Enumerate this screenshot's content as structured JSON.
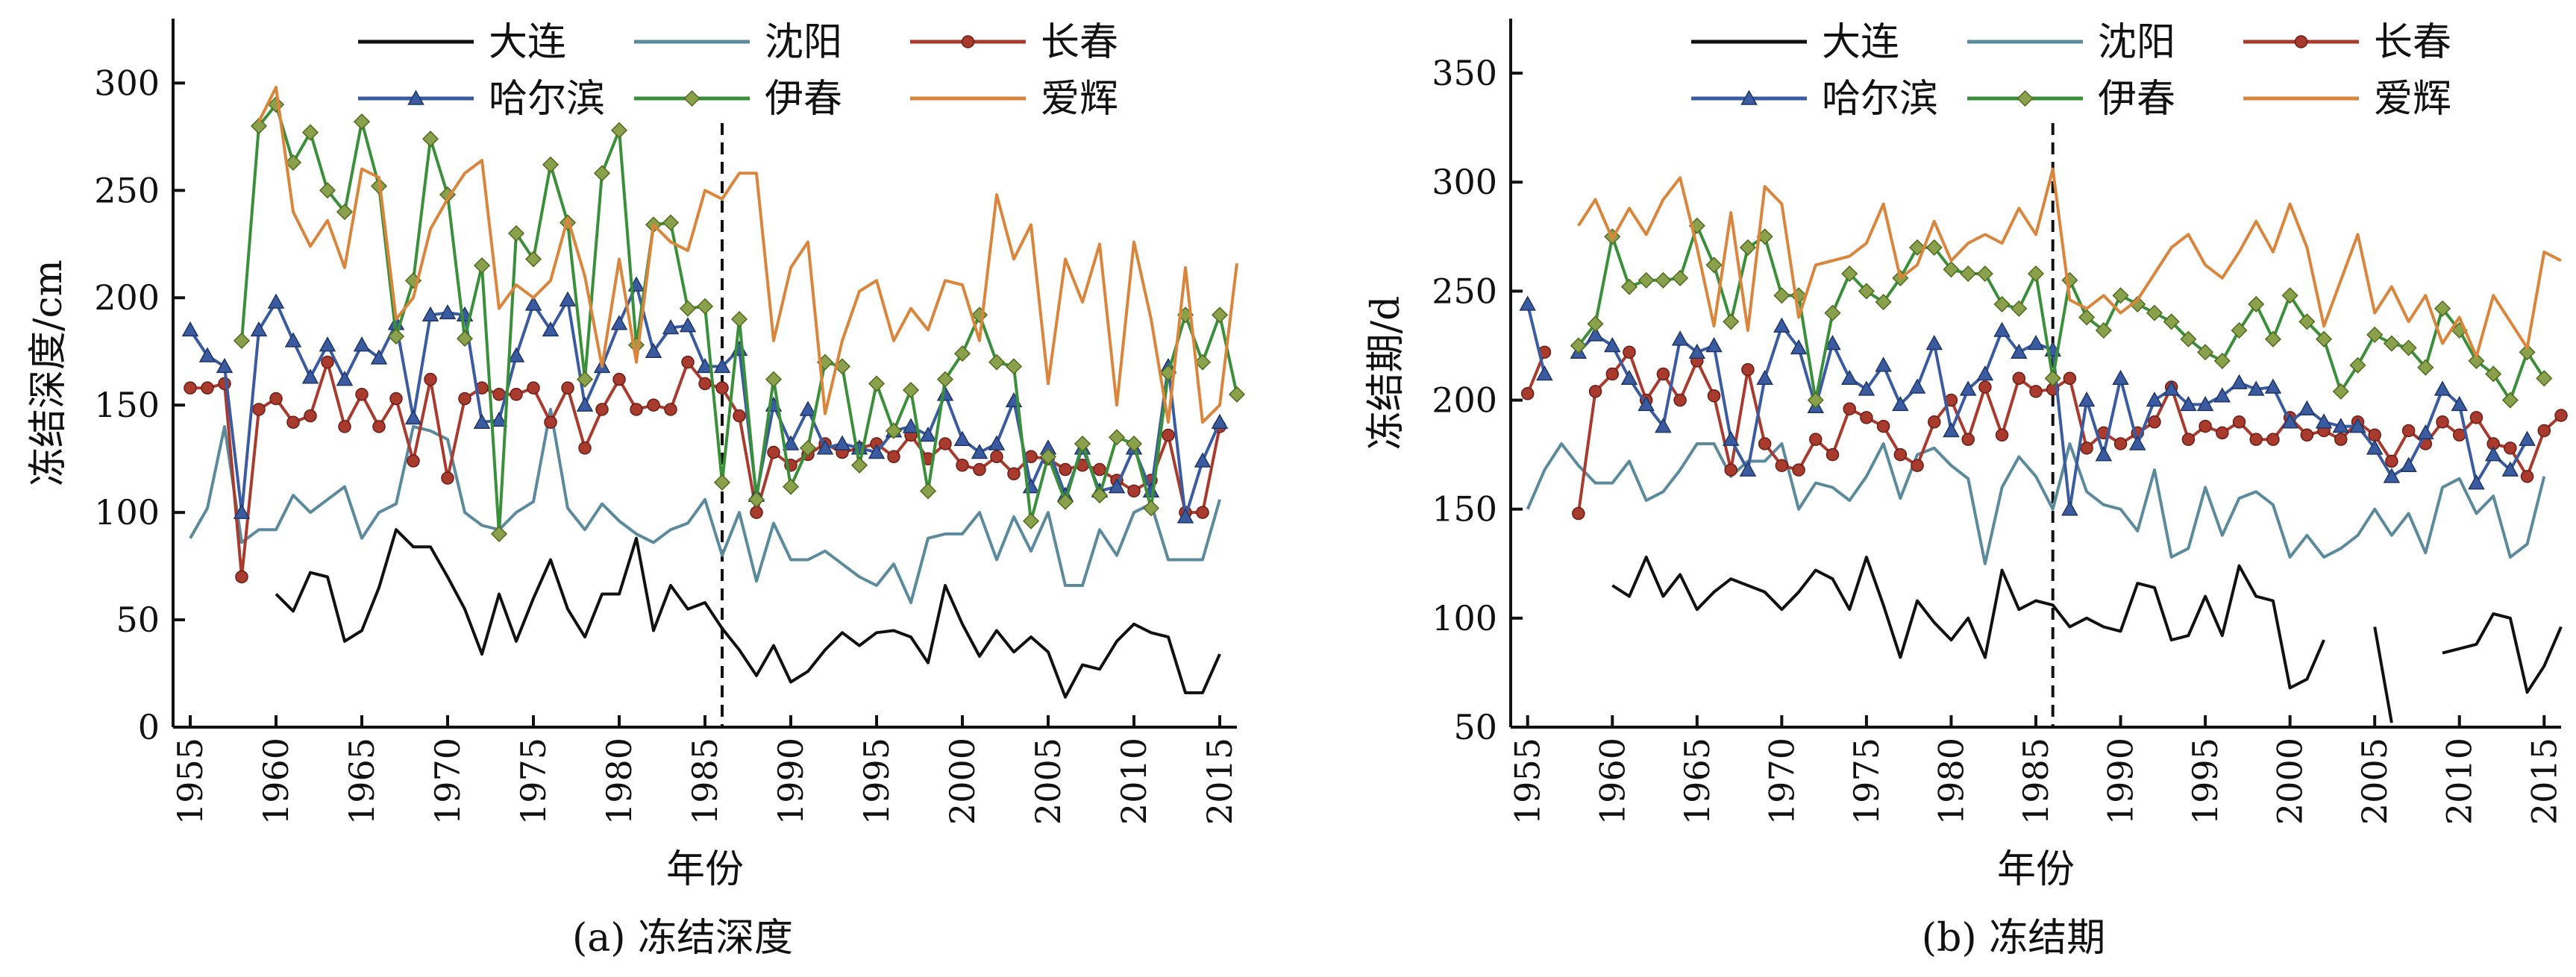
{
  "chart_data": [
    {
      "type": "line",
      "panel_caption": "(a) 冻结深度",
      "xlabel": "年份",
      "ylabel": "冻结深度/cm",
      "xlim": [
        1954,
        2016
      ],
      "ylim": [
        0,
        330
      ],
      "xticks": [
        1955,
        1960,
        1965,
        1970,
        1975,
        1980,
        1985,
        1990,
        1995,
        2000,
        2005,
        2010,
        2015
      ],
      "yticks": [
        0,
        50,
        100,
        150,
        200,
        250,
        300
      ],
      "grid": false,
      "legend_position": "top",
      "vline": 1986,
      "series": [
        {
          "name": "大连",
          "color": "#111111",
          "marker": "none",
          "x_start": 1955,
          "values": [
            null,
            null,
            null,
            null,
            null,
            62,
            54,
            72,
            70,
            40,
            45,
            65,
            92,
            84,
            84,
            70,
            55,
            34,
            62,
            40,
            60,
            78,
            55,
            42,
            62,
            62,
            88,
            45,
            66,
            55,
            58,
            46,
            36,
            24,
            38,
            21,
            26,
            36,
            44,
            38,
            44,
            45,
            42,
            30,
            66,
            48,
            33,
            45,
            35,
            42,
            35,
            14,
            29,
            27,
            40,
            48,
            44,
            42,
            16,
            16,
            34
          ]
        },
        {
          "name": "沈阳",
          "color": "#5b8a9c",
          "marker": "none",
          "x_start": 1955,
          "values": [
            88,
            102,
            140,
            86,
            92,
            92,
            108,
            100,
            106,
            112,
            88,
            100,
            104,
            140,
            138,
            134,
            100,
            94,
            92,
            100,
            105,
            148,
            102,
            92,
            104,
            96,
            90,
            86,
            92,
            95,
            106,
            80,
            100,
            68,
            95,
            78,
            78,
            82,
            76,
            70,
            66,
            76,
            58,
            88,
            90,
            90,
            100,
            78,
            98,
            82,
            100,
            66,
            66,
            92,
            80,
            100,
            104,
            78,
            78,
            78,
            106
          ]
        },
        {
          "name": "长春",
          "color": "#a83a2e",
          "marker": "circle",
          "x_start": 1955,
          "values": [
            158,
            158,
            160,
            70,
            148,
            153,
            142,
            145,
            170,
            140,
            155,
            140,
            153,
            124,
            162,
            116,
            153,
            158,
            155,
            155,
            158,
            142,
            158,
            130,
            148,
            162,
            148,
            150,
            148,
            170,
            160,
            158,
            145,
            100,
            128,
            122,
            127,
            132,
            128,
            130,
            132,
            126,
            136,
            125,
            132,
            122,
            120,
            126,
            118,
            126,
            125,
            120,
            122,
            120,
            115,
            110,
            115,
            136,
            100,
            100,
            140
          ]
        },
        {
          "name": "哈尔滨",
          "color": "#3a5b9f",
          "marker": "triangle",
          "x_start": 1955,
          "values": [
            185,
            173,
            168,
            100,
            185,
            198,
            180,
            163,
            178,
            162,
            178,
            172,
            188,
            144,
            192,
            193,
            192,
            142,
            143,
            173,
            197,
            185,
            199,
            150,
            168,
            188,
            206,
            175,
            186,
            187,
            168,
            168,
            176,
            108,
            150,
            132,
            148,
            130,
            132,
            130,
            128,
            138,
            140,
            136,
            155,
            134,
            128,
            132,
            152,
            112,
            130,
            108,
            130,
            110,
            112,
            130,
            110,
            168,
            98,
            124,
            142
          ]
        },
        {
          "name": "伊春",
          "color": "#3a8f3a",
          "marker": "diamond",
          "x_start": 1955,
          "values": [
            null,
            null,
            null,
            180,
            280,
            290,
            263,
            277,
            250,
            240,
            282,
            252,
            182,
            208,
            274,
            248,
            181,
            215,
            90,
            230,
            218,
            262,
            235,
            162,
            258,
            278,
            178,
            234,
            235,
            195,
            196,
            114,
            190,
            106,
            162,
            112,
            130,
            170,
            168,
            122,
            160,
            138,
            157,
            110,
            162,
            174,
            192,
            170,
            168,
            96,
            126,
            105,
            132,
            108,
            135,
            132,
            102,
            165,
            192,
            170,
            192,
            155
          ]
        },
        {
          "name": "爱辉",
          "color": "#d9853b",
          "marker": "none",
          "x_start": 1955,
          "values": [
            null,
            null,
            null,
            null,
            282,
            298,
            240,
            224,
            236,
            214,
            260,
            256,
            190,
            200,
            232,
            246,
            258,
            264,
            195,
            206,
            200,
            208,
            237,
            210,
            168,
            218,
            170,
            234,
            226,
            222,
            250,
            246,
            258,
            258,
            180,
            214,
            226,
            146,
            180,
            203,
            208,
            180,
            195,
            185,
            208,
            206,
            180,
            248,
            218,
            234,
            160,
            218,
            198,
            225,
            150,
            226,
            190,
            142,
            214,
            142,
            150,
            216
          ]
        }
      ]
    },
    {
      "type": "line",
      "panel_caption": "(b) 冻结期",
      "xlabel": "年份",
      "ylabel": "冻结期/d",
      "xlim": [
        1954,
        2016
      ],
      "ylim": [
        50,
        375
      ],
      "xticks": [
        1955,
        1960,
        1965,
        1970,
        1975,
        1980,
        1985,
        1990,
        1995,
        2000,
        2005,
        2010,
        2015
      ],
      "yticks": [
        50,
        100,
        150,
        200,
        250,
        300,
        350
      ],
      "grid": false,
      "legend_position": "top",
      "vline": 1986,
      "series": [
        {
          "name": "大连",
          "color": "#111111",
          "marker": "none",
          "x_start": 1955,
          "values": [
            null,
            null,
            null,
            null,
            null,
            115,
            110,
            128,
            110,
            120,
            104,
            112,
            118,
            115,
            112,
            104,
            112,
            122,
            118,
            104,
            128,
            106,
            82,
            108,
            98,
            90,
            100,
            82,
            122,
            104,
            108,
            106,
            96,
            100,
            96,
            94,
            116,
            114,
            90,
            92,
            110,
            92,
            124,
            110,
            108,
            68,
            72,
            90,
            null,
            null,
            96,
            52,
            null,
            null,
            84,
            86,
            88,
            102,
            100,
            66,
            78,
            96
          ]
        },
        {
          "name": "沈阳",
          "color": "#5b8a9c",
          "marker": "none",
          "x_start": 1955,
          "values": [
            150,
            168,
            180,
            170,
            162,
            162,
            172,
            154,
            158,
            168,
            180,
            180,
            165,
            172,
            172,
            180,
            150,
            162,
            160,
            154,
            165,
            180,
            155,
            175,
            178,
            170,
            164,
            125,
            160,
            174,
            165,
            150,
            180,
            158,
            152,
            150,
            140,
            168,
            128,
            132,
            160,
            138,
            155,
            158,
            152,
            128,
            138,
            128,
            132,
            138,
            150,
            138,
            148,
            130,
            160,
            164,
            148,
            156,
            128,
            134,
            165
          ]
        },
        {
          "name": "长春",
          "color": "#a83a2e",
          "marker": "circle",
          "x_start": 1955,
          "values": [
            203,
            222,
            null,
            148,
            204,
            212,
            222,
            200,
            212,
            200,
            218,
            202,
            168,
            214,
            180,
            170,
            168,
            182,
            175,
            196,
            192,
            188,
            175,
            170,
            190,
            200,
            182,
            206,
            184,
            210,
            204,
            205,
            210,
            178,
            185,
            180,
            185,
            190,
            206,
            182,
            188,
            185,
            190,
            182,
            182,
            192,
            184,
            186,
            182,
            190,
            184,
            172,
            186,
            180,
            190,
            184,
            192,
            180,
            178,
            165,
            186,
            193
          ]
        },
        {
          "name": "哈尔滨",
          "color": "#3a5b9f",
          "marker": "triangle",
          "x_start": 1955,
          "values": [
            244,
            212,
            null,
            222,
            230,
            225,
            210,
            198,
            188,
            228,
            222,
            225,
            182,
            168,
            210,
            234,
            224,
            197,
            226,
            210,
            205,
            216,
            198,
            206,
            226,
            186,
            205,
            212,
            232,
            222,
            226,
            223,
            150,
            200,
            175,
            210,
            180,
            200,
            205,
            198,
            198,
            202,
            208,
            205,
            206,
            190,
            196,
            190,
            188,
            188,
            178,
            165,
            170,
            185,
            205,
            198,
            162,
            175,
            168,
            182
          ]
        },
        {
          "name": "伊春",
          "color": "#3a8f3a",
          "marker": "diamond",
          "x_start": 1955,
          "values": [
            null,
            null,
            null,
            225,
            235,
            275,
            252,
            255,
            255,
            256,
            280,
            262,
            236,
            270,
            275,
            248,
            248,
            200,
            240,
            258,
            250,
            245,
            256,
            270,
            270,
            260,
            258,
            258,
            244,
            242,
            258,
            210,
            255,
            238,
            232,
            248,
            244,
            240,
            236,
            228,
            222,
            218,
            232,
            244,
            228,
            248,
            236,
            228,
            204,
            216,
            230,
            226,
            224,
            215,
            242,
            232,
            218,
            212,
            200,
            222,
            210
          ]
        },
        {
          "name": "爱辉",
          "color": "#d9853b",
          "marker": "none",
          "x_start": 1955,
          "values": [
            null,
            null,
            null,
            280,
            292,
            274,
            288,
            276,
            292,
            302,
            270,
            234,
            286,
            232,
            298,
            290,
            238,
            262,
            264,
            266,
            272,
            290,
            256,
            262,
            282,
            264,
            272,
            276,
            272,
            288,
            276,
            306,
            246,
            242,
            248,
            240,
            246,
            258,
            270,
            276,
            262,
            256,
            268,
            282,
            268,
            290,
            270,
            234,
            255,
            276,
            240,
            252,
            236,
            248,
            226,
            238,
            220,
            248,
            236,
            224,
            268,
            264
          ]
        }
      ]
    }
  ]
}
